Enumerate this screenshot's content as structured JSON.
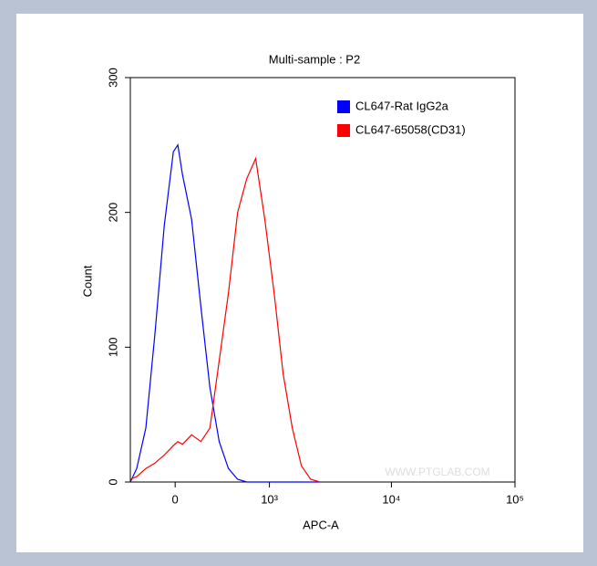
{
  "chart_data": {
    "type": "histogram-line",
    "title": "Multi-sample : P2",
    "x_label": "APC-A",
    "y_label": "Count",
    "watermark": "WWW.PTGLAB.COM",
    "xscale": "biexponential",
    "x": [
      -333,
      -277,
      -204,
      -137,
      -73,
      -12,
      18,
      49,
      111,
      177,
      247,
      326,
      414,
      514,
      628,
      758,
      912,
      1097,
      1309,
      1560,
      1855,
      2207,
      2624
    ],
    "series": [
      {
        "name": "CL647-Rat IgG2a",
        "color": "#0000ff",
        "values": [
          0,
          10,
          40,
          110,
          190,
          245,
          250,
          228,
          195,
          130,
          70,
          30,
          10,
          2,
          0,
          0,
          0,
          0,
          0,
          0,
          0,
          0,
          0
        ]
      },
      {
        "name": "CL647-65058(CD31)",
        "color": "#ff0000",
        "values": [
          2,
          4,
          10,
          14,
          20,
          27,
          30,
          28,
          35,
          30,
          40,
          90,
          140,
          200,
          225,
          240,
          195,
          140,
          80,
          40,
          12,
          2,
          0
        ]
      }
    ],
    "xlim": [
      -333,
      100000
    ],
    "xticks": [
      0,
      {
        "value": 1000,
        "label": "10³"
      },
      {
        "value": 10000,
        "label": "10⁴"
      },
      {
        "value": 100000,
        "label": "10⁵"
      }
    ],
    "ylim": [
      0,
      300
    ],
    "yticks": [
      0,
      100,
      200,
      300
    ]
  }
}
